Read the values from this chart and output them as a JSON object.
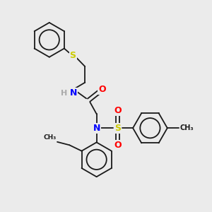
{
  "bg_color": "#ebebeb",
  "atom_colors": {
    "S": "#cccc00",
    "N": "#0000ff",
    "O": "#ff0000",
    "H": "#aaaaaa",
    "C": "#000000"
  },
  "bond_color": "#1a1a1a",
  "lw": 1.3
}
